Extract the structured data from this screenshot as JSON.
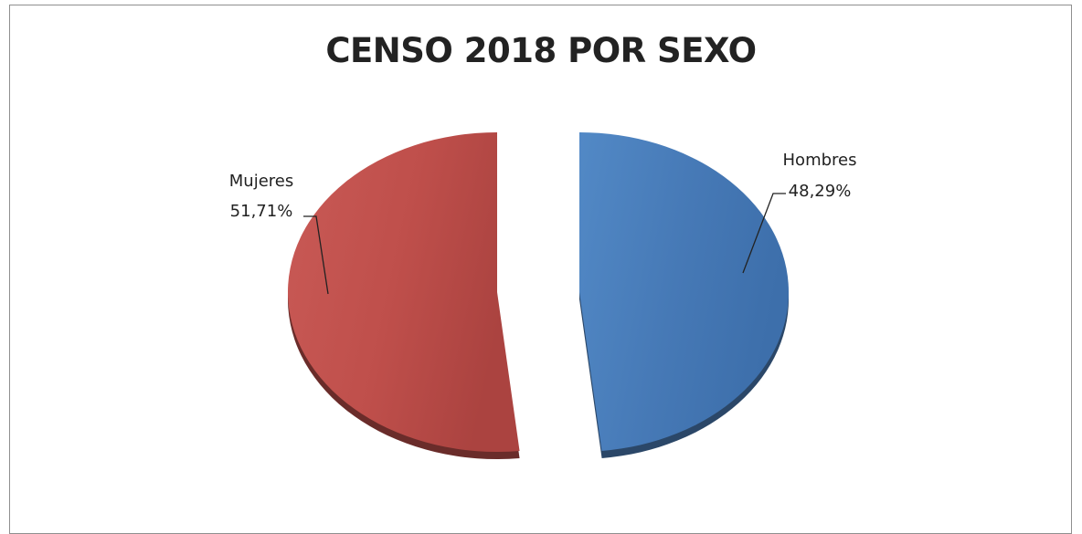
{
  "chart_data": {
    "type": "pie",
    "title": "CENSO 2018 POR SEXO",
    "slices": [
      {
        "label": "Mujeres",
        "value": 51.71,
        "value_text": "51,71%",
        "color": "#c0504d"
      },
      {
        "label": "Hombres",
        "value": 48.29,
        "value_text": "48,29%",
        "color": "#4f81bd"
      }
    ],
    "legend": "none",
    "style": "3d-exploded"
  }
}
